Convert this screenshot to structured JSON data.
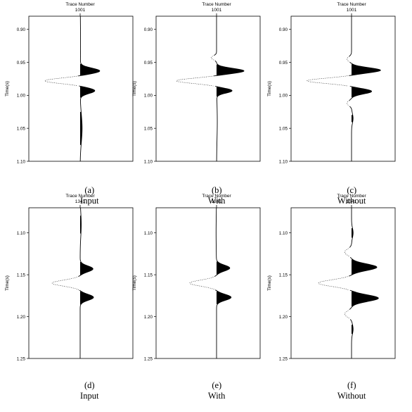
{
  "chart_data": [
    {
      "type": "seismic-trace",
      "panel_label": "(a)",
      "caption": "Input",
      "title": "Trace Number",
      "trace_number": "1001",
      "ylabel": "Time(s)",
      "ylim": [
        0.88,
        1.1
      ],
      "yticks": [
        0.9,
        0.95,
        1.0,
        1.05,
        1.1
      ],
      "tick_labels": [
        "0.90",
        "0.95",
        "1.00",
        "1.05",
        "1.10"
      ],
      "wavelets": [
        {
          "time": 0.963,
          "amplitude": 0.6,
          "width": 0.006
        },
        {
          "time": 0.978,
          "amplitude": -1.1,
          "width": 0.0055
        },
        {
          "time": 0.993,
          "amplitude": 0.45,
          "width": 0.006
        }
      ],
      "drift": [
        {
          "time": 0.92,
          "amplitude": 0.012,
          "width": 0.05
        },
        {
          "time": 1.05,
          "amplitude": 0.06,
          "width": 0.03
        }
      ]
    },
    {
      "type": "seismic-trace",
      "panel_label": "(b)",
      "caption": "With",
      "title": "Trace Number",
      "trace_number": "1001",
      "ylabel": "Time(s)",
      "ylim": [
        0.88,
        1.1
      ],
      "yticks": [
        0.9,
        0.95,
        1.0,
        1.05,
        1.1
      ],
      "tick_labels": [
        "0.90",
        "0.95",
        "1.00",
        "1.05",
        "1.10"
      ],
      "wavelets": [
        {
          "time": 0.943,
          "amplitude": -0.15,
          "width": 0.004
        },
        {
          "time": 0.963,
          "amplitude": 0.75,
          "width": 0.0055
        },
        {
          "time": 0.978,
          "amplitude": -1.1,
          "width": 0.0055
        },
        {
          "time": 0.993,
          "amplitude": 0.42,
          "width": 0.005
        }
      ],
      "drift": [
        {
          "time": 1.04,
          "amplitude": 0.02,
          "width": 0.04
        }
      ]
    },
    {
      "type": "seismic-trace",
      "panel_label": "(c)",
      "caption": "Without",
      "title": "Trace Number",
      "trace_number": "1001",
      "ylabel": "Time(s)",
      "ylim": [
        0.88,
        1.1
      ],
      "yticks": [
        0.9,
        0.95,
        1.0,
        1.05,
        1.1
      ],
      "tick_labels": [
        "0.90",
        "0.95",
        "1.00",
        "1.05",
        "1.10"
      ],
      "wavelets": [
        {
          "time": 0.945,
          "amplitude": -0.12,
          "width": 0.005
        },
        {
          "time": 0.962,
          "amplitude": 0.75,
          "width": 0.0055
        },
        {
          "time": 0.978,
          "amplitude": -1.15,
          "width": 0.0055
        },
        {
          "time": 0.994,
          "amplitude": 0.52,
          "width": 0.0055
        },
        {
          "time": 1.012,
          "amplitude": -0.12,
          "width": 0.005
        },
        {
          "time": 1.035,
          "amplitude": 0.04,
          "width": 0.01
        }
      ],
      "drift": []
    },
    {
      "type": "seismic-trace",
      "panel_label": "(d)",
      "caption": "Input",
      "title": "Trace Number",
      "trace_number": "1341",
      "ylabel": "Time(s)",
      "ylim": [
        1.07,
        1.25
      ],
      "yticks": [
        1.1,
        1.15,
        1.2,
        1.25
      ],
      "tick_labels": [
        "1.10",
        "1.15",
        "1.20",
        "1.25"
      ],
      "wavelets": [
        {
          "time": 1.143,
          "amplitude": 0.48,
          "width": 0.005
        },
        {
          "time": 1.16,
          "amplitude": -1.05,
          "width": 0.005
        },
        {
          "time": 1.177,
          "amplitude": 0.5,
          "width": 0.005
        }
      ],
      "drift": [
        {
          "time": 1.09,
          "amplitude": 0.04,
          "width": 0.02
        }
      ]
    },
    {
      "type": "seismic-trace",
      "panel_label": "(e)",
      "caption": "With",
      "title": "Trace Number",
      "trace_number": "1341",
      "ylabel": "Time(s)",
      "ylim": [
        1.07,
        1.25
      ],
      "yticks": [
        1.1,
        1.15,
        1.2,
        1.25
      ],
      "tick_labels": [
        "1.10",
        "1.15",
        "1.20",
        "1.25"
      ],
      "wavelets": [
        {
          "time": 1.142,
          "amplitude": 0.42,
          "width": 0.005
        },
        {
          "time": 1.16,
          "amplitude": -0.85,
          "width": 0.005
        },
        {
          "time": 1.177,
          "amplitude": 0.46,
          "width": 0.005
        }
      ],
      "drift": [
        {
          "time": 1.1,
          "amplitude": -0.015,
          "width": 0.03
        }
      ]
    },
    {
      "type": "seismic-trace",
      "panel_label": "(f)",
      "caption": "Without",
      "title": "Trace Number",
      "trace_number": "1341",
      "ylabel": "Time(s)",
      "ylim": [
        1.07,
        1.25
      ],
      "yticks": [
        1.1,
        1.15,
        1.2,
        1.25
      ],
      "tick_labels": [
        "1.10",
        "1.15",
        "1.20",
        "1.25"
      ],
      "wavelets": [
        {
          "time": 1.1,
          "amplitude": 0.05,
          "width": 0.008
        },
        {
          "time": 1.123,
          "amplitude": -0.22,
          "width": 0.005
        },
        {
          "time": 1.141,
          "amplitude": 0.8,
          "width": 0.0055
        },
        {
          "time": 1.16,
          "amplitude": -1.05,
          "width": 0.0055
        },
        {
          "time": 1.178,
          "amplitude": 0.85,
          "width": 0.0055
        },
        {
          "time": 1.197,
          "amplitude": -0.22,
          "width": 0.005
        },
        {
          "time": 1.215,
          "amplitude": 0.05,
          "width": 0.008
        }
      ],
      "drift": []
    }
  ]
}
